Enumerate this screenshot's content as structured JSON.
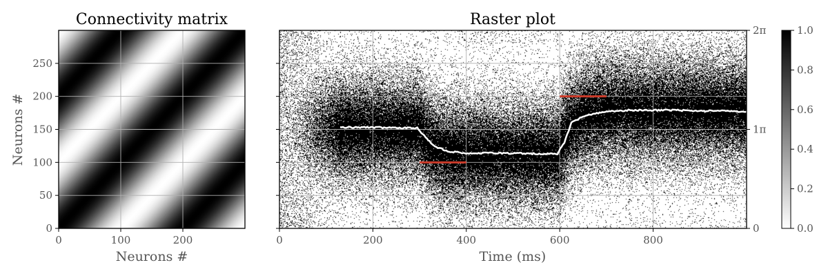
{
  "chart_data": [
    {
      "type": "heatmap",
      "title": "Connectivity matrix",
      "xlabel": "Neurons #",
      "ylabel": "Neurons #",
      "xlim": [
        0,
        300
      ],
      "ylim": [
        0,
        300
      ],
      "xticks": [
        {
          "value": 0,
          "label": "0"
        },
        {
          "value": 100,
          "label": "100"
        },
        {
          "value": 200,
          "label": "200"
        }
      ],
      "yticks": [
        {
          "value": 0,
          "label": "0"
        },
        {
          "value": 50,
          "label": "50"
        },
        {
          "value": 100,
          "label": "100"
        },
        {
          "value": 150,
          "label": "150"
        },
        {
          "value": 200,
          "label": "200"
        },
        {
          "value": 250,
          "label": "250"
        }
      ],
      "grid": true,
      "colormap": "gray_r",
      "value_range": [
        0,
        1
      ],
      "maxima_along": "diagonal i = j and anti-phase bands |i - j| = 300"
    },
    {
      "type": "scatter",
      "title": "Raster plot",
      "xlabel": "Time (ms)",
      "xlim": [
        0,
        1000
      ],
      "ylim": [
        0,
        300
      ],
      "xticks": [
        {
          "value": 0,
          "label": "0"
        },
        {
          "value": 200,
          "label": "200"
        },
        {
          "value": 400,
          "label": "400"
        },
        {
          "value": 600,
          "label": "600"
        },
        {
          "value": 800,
          "label": "800"
        }
      ],
      "right_yticks": [
        {
          "value": 0,
          "label": "0"
        },
        {
          "value": 150,
          "label": "1π"
        },
        {
          "value": 300,
          "label": "2π"
        }
      ],
      "grid": true,
      "spike_bump": {
        "segments": [
          {
            "t_start": 0,
            "t_end": 300,
            "center": 150
          },
          {
            "t_start": 300,
            "t_end": 600,
            "center": 112
          },
          {
            "t_start": 600,
            "t_end": 1000,
            "center": 178
          }
        ]
      },
      "decoded_trace": {
        "color": "#ffffff",
        "x": [
          130,
          200,
          260,
          295,
          310,
          330,
          360,
          400,
          450,
          500,
          550,
          595,
          610,
          625,
          650,
          700,
          750,
          800,
          850,
          900,
          950,
          1000
        ],
        "y": [
          153,
          153,
          152,
          152,
          140,
          125,
          117,
          114,
          114,
          114,
          113,
          113,
          130,
          160,
          170,
          177,
          179,
          179,
          179,
          178,
          178,
          177
        ]
      },
      "cue_segments": {
        "color": "#cc3b2a",
        "segments": [
          {
            "x": [
              300,
              400
            ],
            "y": 100
          },
          {
            "x": [
              600,
              700
            ],
            "y": 200
          }
        ]
      }
    }
  ],
  "colorbar": {
    "range": [
      0,
      1
    ],
    "ticks": [
      {
        "value": 0,
        "label": "0.0"
      },
      {
        "value": 0.2,
        "label": "0.2"
      },
      {
        "value": 0.4,
        "label": "0.4"
      },
      {
        "value": 0.6,
        "label": "0.6"
      },
      {
        "value": 0.8,
        "label": "0.8"
      },
      {
        "value": 1,
        "label": "1.0"
      }
    ]
  }
}
